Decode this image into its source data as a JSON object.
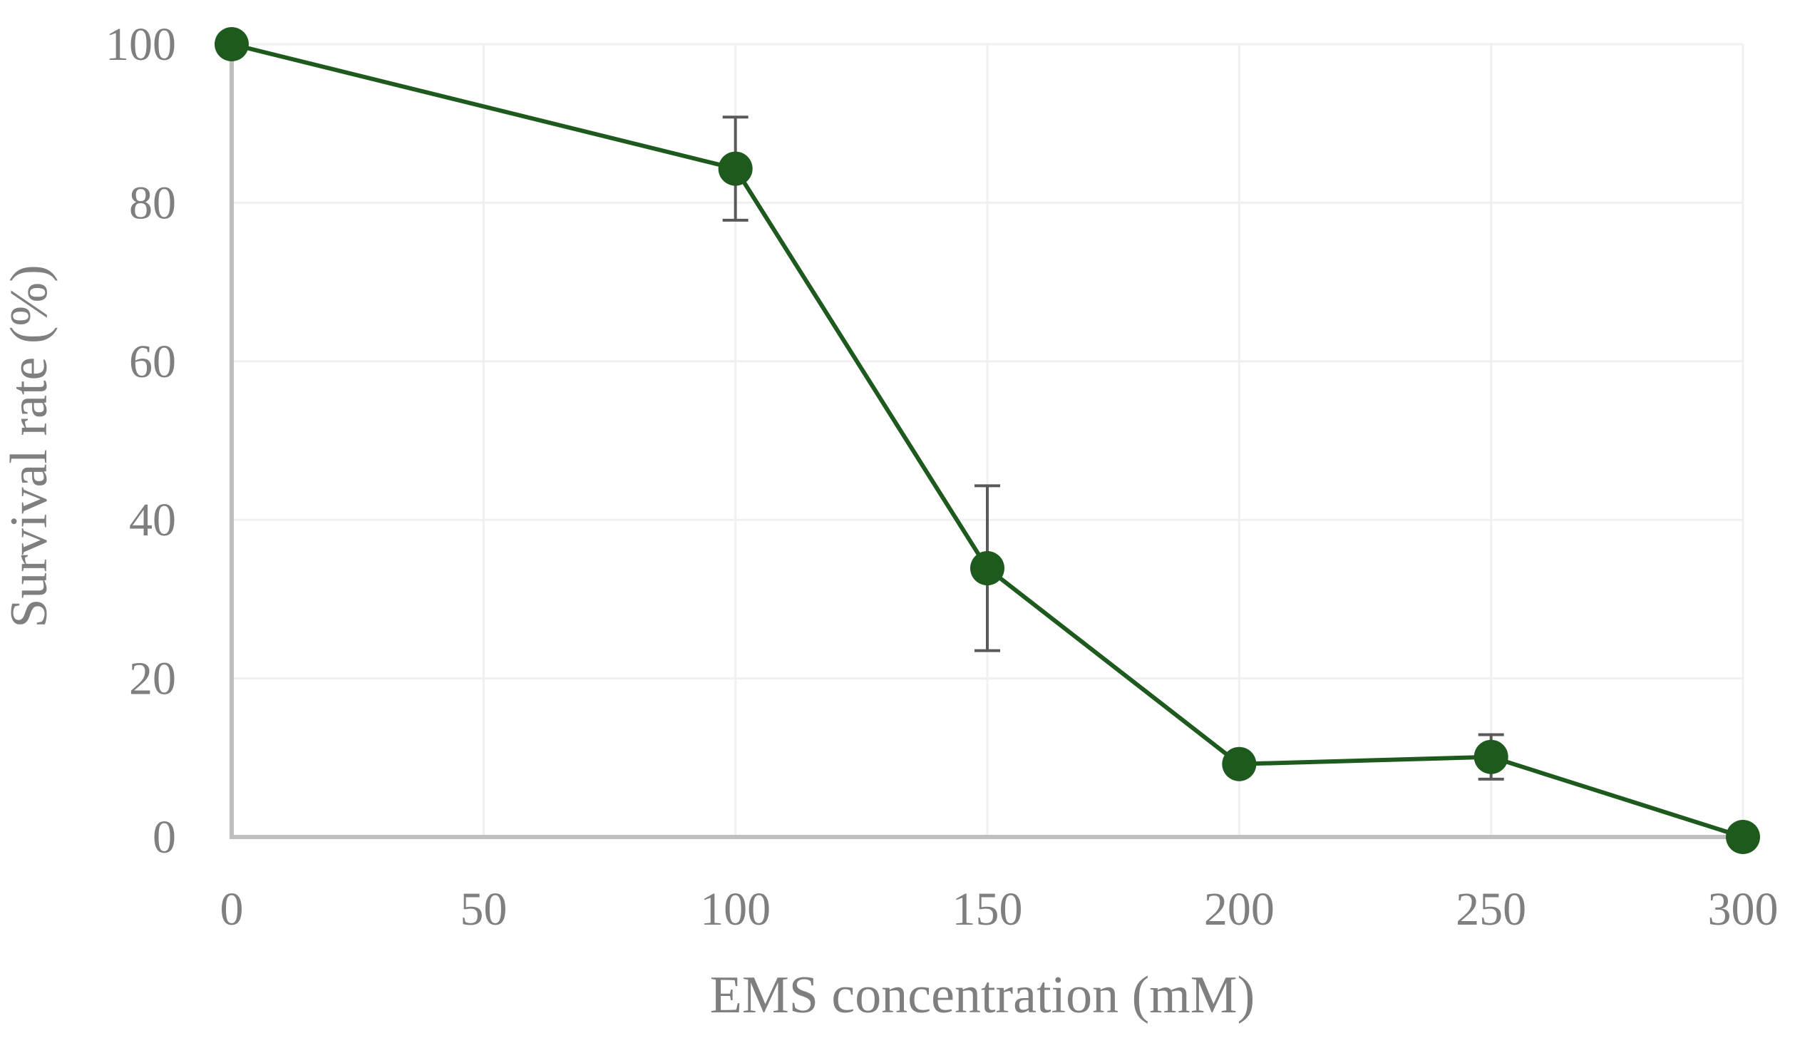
{
  "chart_data": {
    "type": "line",
    "title": "",
    "xlabel": "EMS concentration (mM)",
    "ylabel": "Survival rate (%)",
    "xlim": [
      0,
      300
    ],
    "ylim": [
      0,
      100
    ],
    "xticks": [
      0,
      50,
      100,
      150,
      200,
      250,
      300
    ],
    "yticks": [
      0,
      20,
      40,
      60,
      80,
      100
    ],
    "grid": true,
    "series": [
      {
        "name": "Survival rate",
        "color": "#1e5a1e",
        "x": [
          0,
          100,
          150,
          200,
          250,
          300
        ],
        "y": [
          100,
          84.3,
          33.9,
          9.2,
          10.1,
          0
        ],
        "error": [
          0,
          6.5,
          10.4,
          0,
          2.8,
          0
        ]
      }
    ]
  },
  "colors": {
    "axis": "#bfbfbf",
    "grid": "#f0f0f0",
    "text": "#7f7f7f",
    "error_bar": "#595959"
  }
}
